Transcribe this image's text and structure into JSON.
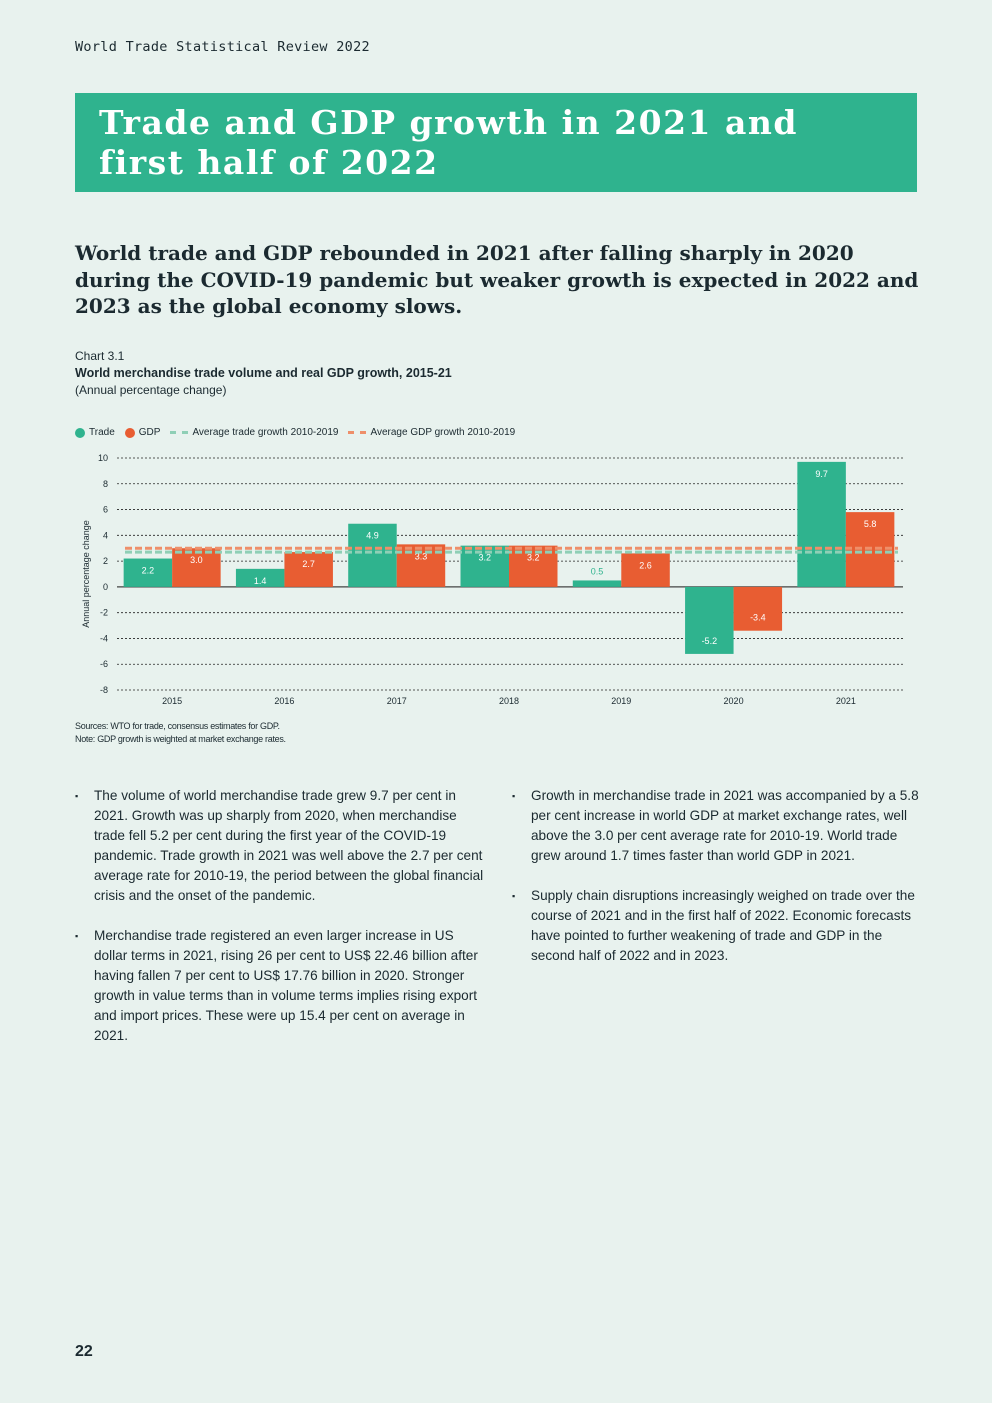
{
  "running_header": "World Trade Statistical Review 2022",
  "title": "Trade and GDP growth in 2021 and first half of 2022",
  "lead": "World trade and GDP rebounded in 2021 after falling sharply in 2020 during the COVID-19 pandemic but weaker growth is expected in 2022 and 2023 as the global economy slows.",
  "chart": {
    "number": "Chart 3.1",
    "title": "World merchandise trade volume and real GDP growth, 2015-21",
    "subtitle": "(Annual percentage change)",
    "sources": "Sources: WTO for trade, consensus estimates for GDP.",
    "note": "Note:  GDP growth is weighted at market exchange rates."
  },
  "colors": {
    "trade": "#2fb38e",
    "gdp": "#e85d32",
    "avg_trade": "#8fcfb6",
    "avg_gdp": "#ee8f6a",
    "accent": "#2fb38e"
  },
  "chart_data": {
    "type": "bar",
    "categories": [
      "2015",
      "2016",
      "2017",
      "2018",
      "2019",
      "2020",
      "2021"
    ],
    "series": [
      {
        "name": "Trade",
        "values": [
          2.2,
          1.4,
          4.9,
          3.2,
          0.5,
          -5.2,
          9.7
        ]
      },
      {
        "name": "GDP",
        "values": [
          3.0,
          2.7,
          3.3,
          3.2,
          2.6,
          -3.4,
          5.8
        ]
      }
    ],
    "reference_lines": [
      {
        "name": "Average trade growth 2010-2019",
        "value": 2.7
      },
      {
        "name": "Average GDP growth 2010-2019",
        "value": 3.0
      }
    ],
    "ylabel": "Annual percentage change",
    "ylim": [
      -8,
      10
    ],
    "yticks": [
      10,
      8,
      6,
      4,
      2,
      0,
      -2,
      -4,
      -6,
      -8
    ],
    "grid": true,
    "legend": "top-left"
  },
  "bullets_left": [
    "The volume of world merchandise trade grew 9.7 per cent in 2021.  Growth was up sharply from 2020, when merchandise trade fell 5.2 per cent during the first year of the COVID-19 pandemic. Trade growth in 2021 was well above the 2.7 per cent average rate for 2010-19, the period between the global financial crisis and the onset of the pandemic.",
    "Merchandise trade registered an even larger increase in US dollar terms in 2021, rising 26 per cent to US$ 22.46 billion after having fallen 7 per cent to US$ 17.76 billion in 2020. Stronger growth in value terms than in volume terms implies rising export and import prices. These were up 15.4 per cent on average in 2021."
  ],
  "bullets_right": [
    "Growth in merchandise trade in 2021 was accompanied by a 5.8 per cent increase in world GDP at market exchange rates, well above the 3.0 per cent average rate for 2010-19.  World trade grew around 1.7 times faster than world GDP in 2021.",
    "Supply chain disruptions increasingly weighed on trade over the course of 2021 and in the first half of 2022. Economic forecasts have pointed to further weakening of trade and GDP in the second half of 2022 and in 2023."
  ],
  "page_number": "22"
}
